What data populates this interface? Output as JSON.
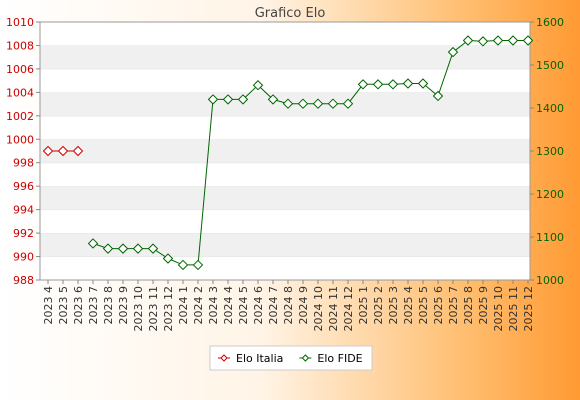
{
  "chart_data": {
    "type": "line",
    "title": "Grafico Elo",
    "categories": [
      "2023 4",
      "2023 5",
      "2023 6",
      "2023 7",
      "2023 8",
      "2023 9",
      "2023 10",
      "2023 11",
      "2023 12",
      "2024 1",
      "2024 2",
      "2024 3",
      "2024 4",
      "2024 5",
      "2024 6",
      "2024 7",
      "2024 8",
      "2024 9",
      "2024 10",
      "2024 11",
      "2024 12",
      "2025 1",
      "2025 2",
      "2025 3",
      "2025 4",
      "2025 5",
      "2025 6",
      "2025 7",
      "2025 8",
      "2025 9",
      "2025 10",
      "2025 11",
      "2025 12"
    ],
    "y_left": {
      "min": 988,
      "max": 1010,
      "step": 2,
      "ticks": [
        "988",
        "990",
        "992",
        "994",
        "996",
        "998",
        "1000",
        "1002",
        "1004",
        "1006",
        "1008",
        "1010"
      ],
      "color": "#cc0000"
    },
    "y_right": {
      "min": 1000,
      "max": 1600,
      "step": 100,
      "ticks": [
        "1000",
        "1100",
        "1200",
        "1300",
        "1400",
        "1500",
        "1600"
      ],
      "color": "#006600"
    },
    "series": [
      {
        "name": "Elo Italia",
        "axis": "left",
        "color": "#cc0000",
        "values": [
          999,
          999,
          999,
          null,
          null,
          null,
          null,
          null,
          null,
          null,
          null,
          null,
          null,
          null,
          null,
          null,
          null,
          null,
          null,
          null,
          null,
          null,
          null,
          null,
          null,
          null,
          null,
          null,
          null,
          null,
          null,
          null,
          null
        ]
      },
      {
        "name": "Elo FIDE",
        "axis": "right",
        "color": "#006600",
        "values": [
          null,
          null,
          null,
          1085,
          1073,
          1073,
          1073,
          1073,
          1050,
          1035,
          1035,
          1420,
          1420,
          1420,
          1453,
          1420,
          1410,
          1410,
          1410,
          1410,
          1410,
          1455,
          1455,
          1455,
          1457,
          1457,
          1428,
          1530,
          1557,
          1555,
          1557,
          1557,
          1557
        ]
      }
    ],
    "legend_position": "bottom"
  }
}
